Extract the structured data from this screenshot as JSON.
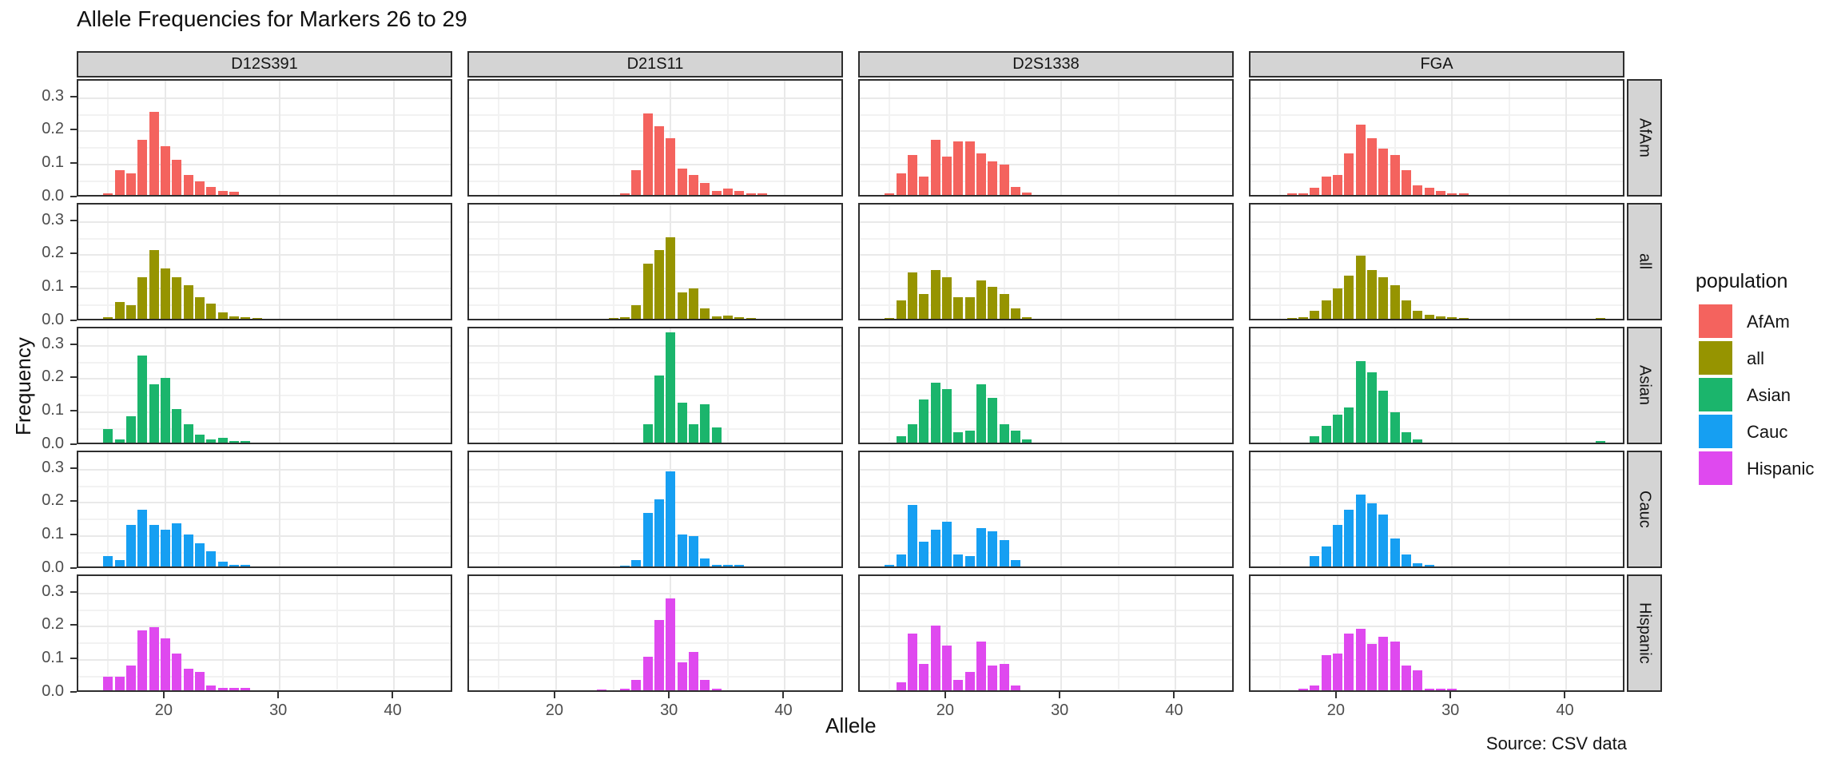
{
  "chart_data": {
    "type": "bar",
    "title": "Allele Frequencies for Markers 26 to 29",
    "xlabel": "Allele",
    "ylabel": "Frequency",
    "caption": "Source: CSV data",
    "grid": true,
    "x_domain": [
      12.4,
      45.2
    ],
    "y_domain": [
      0,
      0.352
    ],
    "x_ticks": [
      20,
      30,
      40
    ],
    "x_tick_labels": [
      "20",
      "30",
      "40"
    ],
    "x_minor_gridlines": [
      15,
      25,
      35,
      45
    ],
    "y_ticks": [
      0.0,
      0.1,
      0.2,
      0.3
    ],
    "y_tick_labels": [
      "0.0",
      "0.1",
      "0.2",
      "0.3"
    ],
    "y_minor_gridlines": [
      0.05,
      0.15,
      0.25
    ],
    "col_facets": [
      "D12S391",
      "D21S11",
      "D2S1338",
      "FGA"
    ],
    "row_facets": [
      "AfAm",
      "all",
      "Asian",
      "Cauc",
      "Hispanic"
    ],
    "legend": {
      "title": "population",
      "position": "right",
      "entries": [
        {
          "label": "AfAm",
          "color": "#F4635E"
        },
        {
          "label": "all",
          "color": "#969400"
        },
        {
          "label": "Asian",
          "color": "#1BB56C"
        },
        {
          "label": "Cauc",
          "color": "#169FF2"
        },
        {
          "label": "Hispanic",
          "color": "#DF49EF"
        }
      ]
    },
    "facets": [
      {
        "row": "AfAm",
        "col": "D12S391",
        "alleles": [
          15,
          16,
          17,
          18,
          19,
          20,
          21,
          22,
          23,
          24,
          25,
          26
        ],
        "freqs": [
          0.005,
          0.075,
          0.065,
          0.165,
          0.25,
          0.145,
          0.105,
          0.06,
          0.04,
          0.025,
          0.012,
          0.01
        ]
      },
      {
        "row": "AfAm",
        "col": "D21S11",
        "alleles": [
          26,
          27,
          28,
          29,
          30,
          31,
          32,
          33,
          34,
          35,
          36,
          37,
          38
        ],
        "freqs": [
          0.005,
          0.075,
          0.245,
          0.205,
          0.17,
          0.08,
          0.06,
          0.035,
          0.012,
          0.02,
          0.012,
          0.005,
          0.005
        ]
      },
      {
        "row": "AfAm",
        "col": "D2S1338",
        "alleles": [
          15,
          16,
          17,
          18,
          19,
          20,
          21,
          22,
          23,
          24,
          25,
          26,
          27
        ],
        "freqs": [
          0.005,
          0.065,
          0.12,
          0.055,
          0.165,
          0.115,
          0.16,
          0.16,
          0.125,
          0.1,
          0.09,
          0.025,
          0.008
        ]
      },
      {
        "row": "AfAm",
        "col": "FGA",
        "alleles": [
          16,
          17,
          18,
          19,
          20,
          21,
          22,
          23,
          24,
          25,
          26,
          27,
          28,
          29,
          30,
          31
        ],
        "freqs": [
          0.004,
          0.004,
          0.022,
          0.055,
          0.06,
          0.125,
          0.21,
          0.17,
          0.14,
          0.12,
          0.075,
          0.028,
          0.022,
          0.012,
          0.005,
          0.005
        ]
      },
      {
        "row": "all",
        "col": "D12S391",
        "alleles": [
          15,
          16,
          17,
          18,
          19,
          20,
          21,
          22,
          23,
          24,
          25,
          26,
          27,
          28
        ],
        "freqs": [
          0.004,
          0.05,
          0.04,
          0.125,
          0.205,
          0.15,
          0.125,
          0.1,
          0.065,
          0.045,
          0.02,
          0.008,
          0.004,
          0.003
        ]
      },
      {
        "row": "all",
        "col": "D21S11",
        "alleles": [
          25,
          26,
          27,
          28,
          29,
          30,
          31,
          32,
          33,
          34,
          35,
          36,
          37
        ],
        "freqs": [
          0.003,
          0.004,
          0.04,
          0.165,
          0.205,
          0.245,
          0.08,
          0.09,
          0.03,
          0.008,
          0.01,
          0.004,
          0.003
        ]
      },
      {
        "row": "all",
        "col": "D2S1338",
        "alleles": [
          15,
          16,
          17,
          18,
          19,
          20,
          21,
          22,
          23,
          24,
          25,
          26,
          27
        ],
        "freqs": [
          0.003,
          0.055,
          0.14,
          0.075,
          0.145,
          0.125,
          0.065,
          0.065,
          0.115,
          0.095,
          0.075,
          0.03,
          0.005
        ]
      },
      {
        "row": "all",
        "col": "FGA",
        "alleles": [
          16,
          17,
          18,
          19,
          20,
          21,
          22,
          23,
          24,
          25,
          26,
          27,
          28,
          29,
          30,
          31,
          43
        ],
        "freqs": [
          0.003,
          0.004,
          0.025,
          0.055,
          0.09,
          0.13,
          0.19,
          0.145,
          0.125,
          0.1,
          0.055,
          0.025,
          0.012,
          0.008,
          0.004,
          0.003,
          0.003
        ]
      },
      {
        "row": "Asian",
        "col": "D12S391",
        "alleles": [
          15,
          16,
          17,
          18,
          19,
          20,
          21,
          22,
          23,
          24,
          25,
          26,
          27
        ],
        "freqs": [
          0.04,
          0.01,
          0.08,
          0.26,
          0.175,
          0.195,
          0.1,
          0.055,
          0.025,
          0.01,
          0.015,
          0.005,
          0.005
        ]
      },
      {
        "row": "Asian",
        "col": "D21S11",
        "alleles": [
          28,
          29,
          30,
          31,
          32,
          33,
          34
        ],
        "freqs": [
          0.055,
          0.2,
          0.33,
          0.12,
          0.055,
          0.115,
          0.045
        ]
      },
      {
        "row": "Asian",
        "col": "D2S1338",
        "alleles": [
          16,
          17,
          18,
          19,
          20,
          21,
          22,
          23,
          24,
          25,
          26,
          27
        ],
        "freqs": [
          0.02,
          0.055,
          0.13,
          0.18,
          0.16,
          0.03,
          0.035,
          0.175,
          0.135,
          0.055,
          0.035,
          0.01
        ]
      },
      {
        "row": "Asian",
        "col": "FGA",
        "alleles": [
          18,
          19,
          20,
          21,
          22,
          23,
          24,
          25,
          26,
          27,
          43
        ],
        "freqs": [
          0.02,
          0.05,
          0.085,
          0.105,
          0.245,
          0.21,
          0.155,
          0.09,
          0.03,
          0.01,
          0.005
        ]
      },
      {
        "row": "Cauc",
        "col": "D12S391",
        "alleles": [
          15,
          16,
          17,
          18,
          19,
          20,
          21,
          22,
          23,
          24,
          25,
          26,
          27
        ],
        "freqs": [
          0.03,
          0.02,
          0.125,
          0.17,
          0.125,
          0.11,
          0.13,
          0.095,
          0.07,
          0.045,
          0.015,
          0.004,
          0.004
        ]
      },
      {
        "row": "Cauc",
        "col": "D21S11",
        "alleles": [
          26,
          27,
          28,
          29,
          30,
          31,
          32,
          33,
          34,
          35,
          36
        ],
        "freqs": [
          0.003,
          0.02,
          0.16,
          0.2,
          0.285,
          0.095,
          0.09,
          0.025,
          0.004,
          0.005,
          0.004
        ]
      },
      {
        "row": "Cauc",
        "col": "D2S1338",
        "alleles": [
          15,
          16,
          17,
          18,
          19,
          20,
          21,
          22,
          23,
          24,
          25,
          26
        ],
        "freqs": [
          0.004,
          0.035,
          0.185,
          0.075,
          0.11,
          0.135,
          0.035,
          0.03,
          0.115,
          0.105,
          0.08,
          0.02
        ]
      },
      {
        "row": "Cauc",
        "col": "FGA",
        "alleles": [
          18,
          19,
          20,
          21,
          22,
          23,
          24,
          25,
          26,
          27,
          28
        ],
        "freqs": [
          0.03,
          0.06,
          0.125,
          0.17,
          0.215,
          0.19,
          0.155,
          0.085,
          0.035,
          0.01,
          0.004
        ]
      },
      {
        "row": "Hispanic",
        "col": "D12S391",
        "alleles": [
          15,
          16,
          17,
          18,
          19,
          20,
          21,
          22,
          23,
          24,
          25,
          26,
          27
        ],
        "freqs": [
          0.04,
          0.04,
          0.075,
          0.18,
          0.19,
          0.155,
          0.11,
          0.065,
          0.055,
          0.015,
          0.006,
          0.006,
          0.006
        ]
      },
      {
        "row": "Hispanic",
        "col": "D21S11",
        "alleles": [
          24,
          26,
          27,
          28,
          29,
          30,
          31,
          32,
          33,
          34
        ],
        "freqs": [
          0.003,
          0.004,
          0.03,
          0.1,
          0.21,
          0.275,
          0.085,
          0.115,
          0.03,
          0.005
        ]
      },
      {
        "row": "Hispanic",
        "col": "D2S1338",
        "alleles": [
          16,
          17,
          18,
          19,
          20,
          21,
          22,
          23,
          24,
          25,
          26
        ],
        "freqs": [
          0.025,
          0.17,
          0.08,
          0.195,
          0.135,
          0.03,
          0.055,
          0.145,
          0.075,
          0.08,
          0.015
        ]
      },
      {
        "row": "Hispanic",
        "col": "FGA",
        "alleles": [
          17,
          18,
          19,
          20,
          21,
          22,
          23,
          24,
          25,
          26,
          27,
          28,
          29,
          30
        ],
        "freqs": [
          0.005,
          0.015,
          0.105,
          0.11,
          0.17,
          0.185,
          0.14,
          0.16,
          0.145,
          0.075,
          0.06,
          0.005,
          0.004,
          0.004
        ]
      }
    ],
    "style_colors": {
      "strip_bg": "#d4d4d4",
      "panel_border": "#2e2e2e",
      "grid_major": "#e9e9e9",
      "grid_minor": "#f2f2f2",
      "tick_text": "#4d4d4d"
    }
  }
}
